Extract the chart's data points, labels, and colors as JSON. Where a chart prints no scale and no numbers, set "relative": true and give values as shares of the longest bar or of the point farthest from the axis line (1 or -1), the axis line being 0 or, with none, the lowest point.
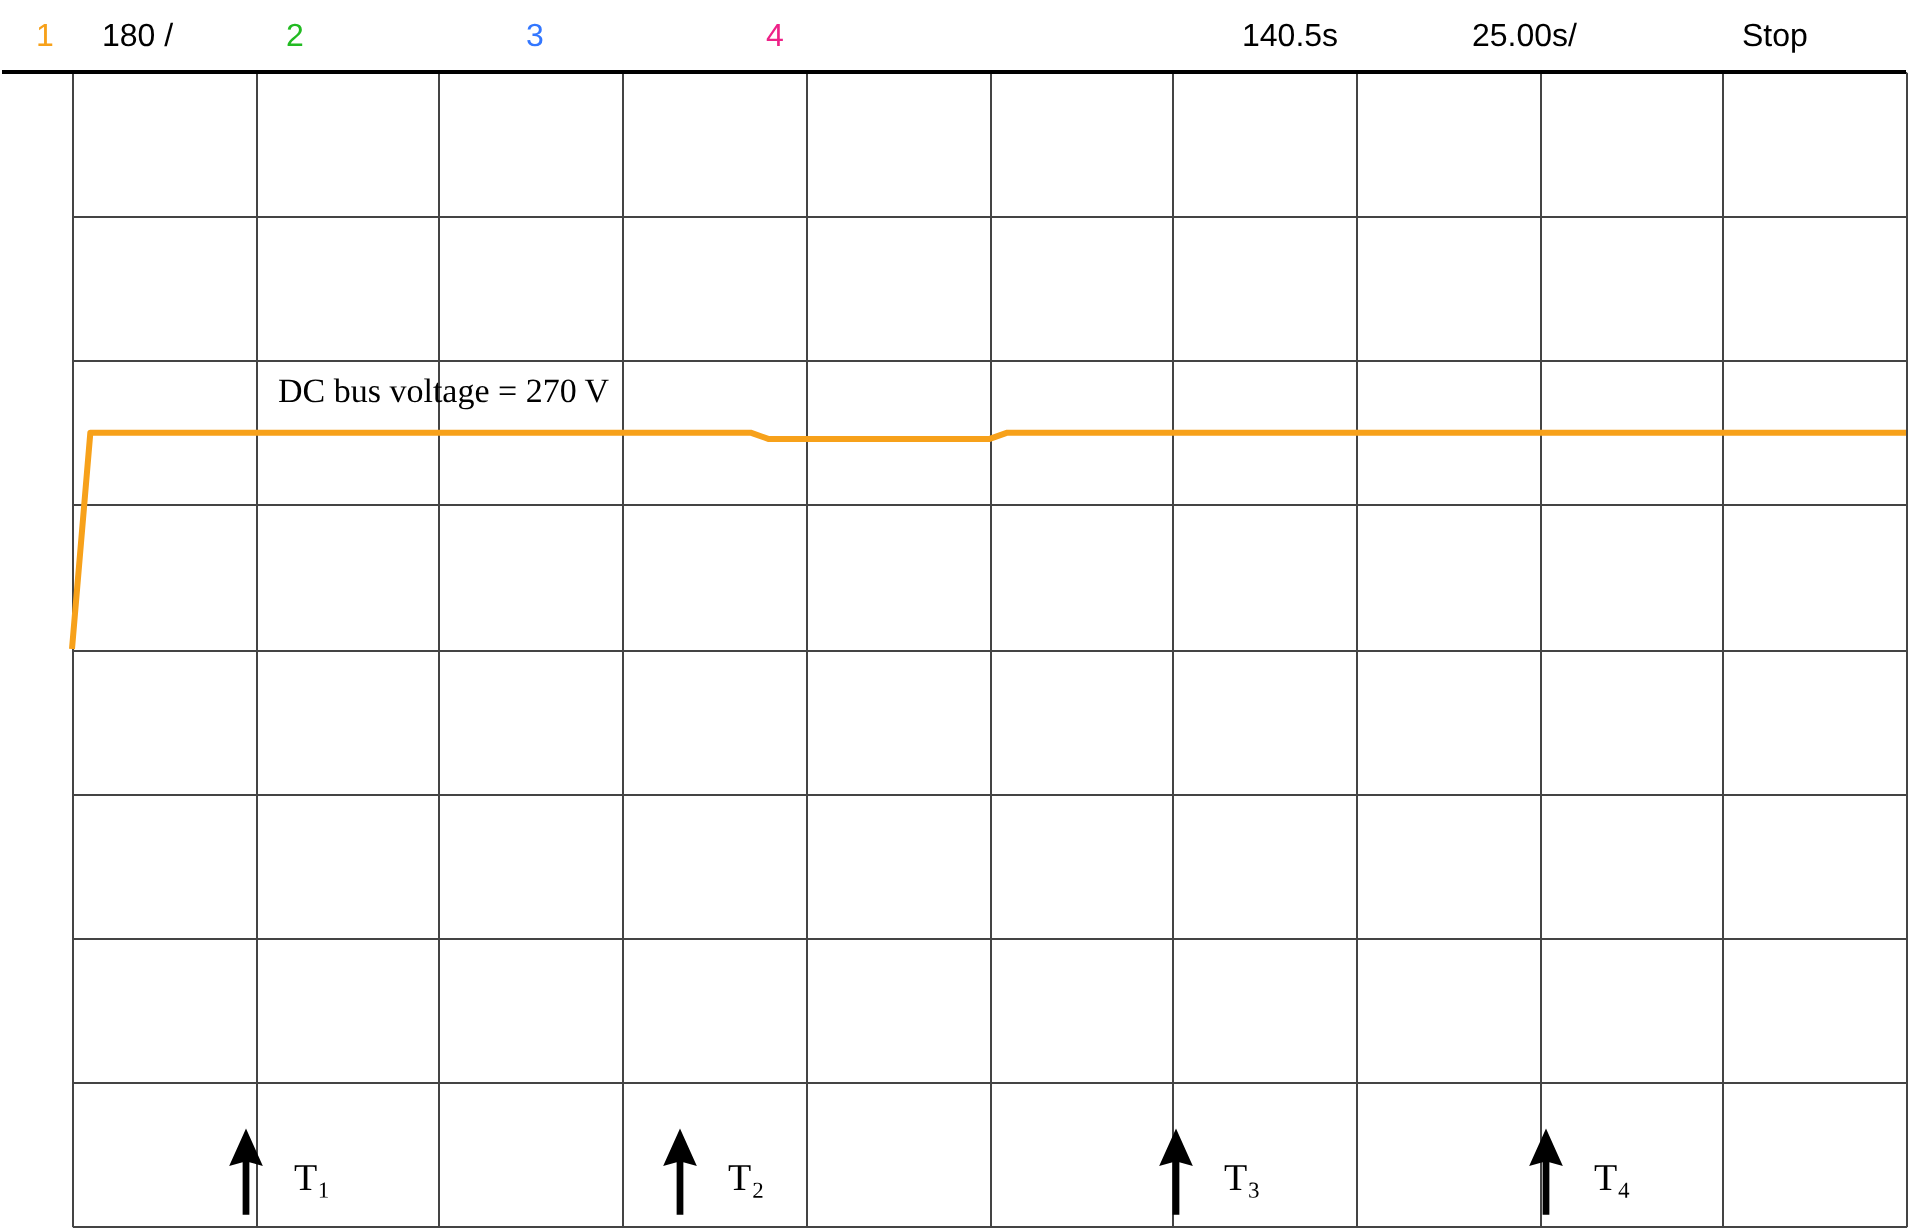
{
  "chart_data": {
    "type": "line",
    "relative": true,
    "grid": true,
    "marker": "none",
    "line_style": "solid",
    "categories": [
      null,
      null,
      null,
      null,
      null,
      null,
      null,
      null,
      null,
      null,
      null,
      null,
      null,
      null,
      null,
      null,
      null,
      null,
      null,
      null,
      null,
      null,
      null,
      null,
      null,
      null,
      null,
      null,
      null,
      null,
      null,
      null,
      null,
      null,
      null,
      null,
      null,
      null,
      null,
      null,
      null,
      null,
      null,
      null,
      null,
      null,
      null,
      null,
      null,
      null,
      null,
      null,
      null,
      null,
      null,
      null,
      null,
      null,
      null,
      null,
      null,
      null,
      null,
      null,
      null,
      null,
      null,
      null,
      null,
      null,
      null,
      null,
      null,
      null,
      null,
      null,
      null,
      null,
      null,
      null,
      null,
      null,
      null,
      null,
      null,
      null,
      null,
      null,
      null,
      null,
      null,
      null,
      null,
      null,
      null,
      null,
      null,
      null,
      null,
      null,
      null
    ],
    "series": [
      {
        "color": "#f7a11a",
        "values": [
          0,
          1,
          1,
          1,
          1,
          1,
          1,
          1,
          1,
          1,
          1,
          1,
          1,
          1,
          1,
          1,
          1,
          1,
          1,
          1,
          1,
          1,
          1,
          1,
          1,
          1,
          1,
          1,
          1,
          1,
          1,
          1,
          1,
          1,
          1,
          1,
          1,
          1,
          0.97,
          0.97,
          0.97,
          0.97,
          0.97,
          0.97,
          0.97,
          0.97,
          0.97,
          0.97,
          0.97,
          0.97,
          0.97,
          1,
          1,
          1,
          1,
          1,
          1,
          1,
          1,
          1,
          1,
          1,
          1,
          1,
          1,
          1,
          1,
          1,
          1,
          1,
          1,
          1,
          1,
          1,
          1,
          1,
          1,
          1,
          1,
          1,
          1,
          1,
          1,
          1,
          1,
          1,
          1,
          1,
          1,
          1,
          1,
          1,
          1,
          1,
          1,
          1,
          1,
          1,
          1,
          1,
          1
        ]
      }
    ],
    "annotations": [
      "1",
      "180 /",
      "2",
      "3",
      "4",
      "140.5s",
      "25.00s/",
      "Stop",
      "DC bus voltage = 270 V",
      "T₁",
      "T₂",
      "T₃",
      "T₄"
    ]
  }
}
